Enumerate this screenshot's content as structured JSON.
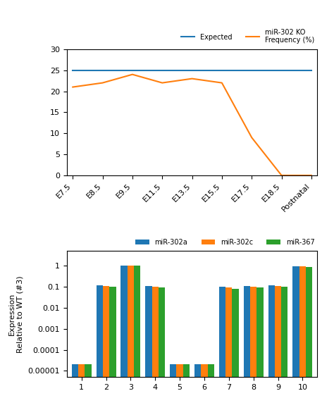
{
  "chart_data": [
    {
      "type": "line",
      "categories": [
        "E7.5",
        "E8.5",
        "E9.5",
        "E11.5",
        "E13.5",
        "E15.5",
        "E17.5",
        "E18.5",
        "Postnatal"
      ],
      "series": [
        {
          "name": "Expected",
          "values": [
            25,
            25,
            25,
            25,
            25,
            25,
            25,
            25,
            25
          ]
        },
        {
          "name": "miR-302 KO\nFrequency (%)",
          "values": [
            21,
            22,
            24,
            22,
            23,
            22,
            9,
            0,
            0
          ]
        }
      ],
      "ylim": [
        0,
        30
      ],
      "yticks": [
        0,
        5,
        10,
        15,
        20,
        25,
        30
      ],
      "legend": "upper right"
    },
    {
      "type": "bar",
      "categories": [
        "1",
        "2",
        "3",
        "4",
        "5",
        "6",
        "7",
        "8",
        "9",
        "10"
      ],
      "series": [
        {
          "name": "miR-302a",
          "values": [
            2e-05,
            0.12,
            1.0,
            0.11,
            2e-05,
            2e-05,
            0.1,
            0.11,
            0.12,
            0.95
          ]
        },
        {
          "name": "miR-302c",
          "values": [
            2e-05,
            0.11,
            1.0,
            0.1,
            2e-05,
            2e-05,
            0.09,
            0.1,
            0.11,
            0.93
          ]
        },
        {
          "name": "miR-367",
          "values": [
            2e-05,
            0.1,
            1.0,
            0.09,
            2e-05,
            2e-05,
            0.08,
            0.09,
            0.1,
            0.9
          ]
        }
      ],
      "y_label": "Expression\nRelative to WT (#3)",
      "log": "y",
      "ylim": [
        5e-06,
        5
      ],
      "yticks": [
        {
          "value": 1e-05,
          "label": "0.00001"
        },
        0.0001,
        0.001,
        0.01,
        0.1,
        1
      ],
      "legend": "lower right"
    }
  ]
}
